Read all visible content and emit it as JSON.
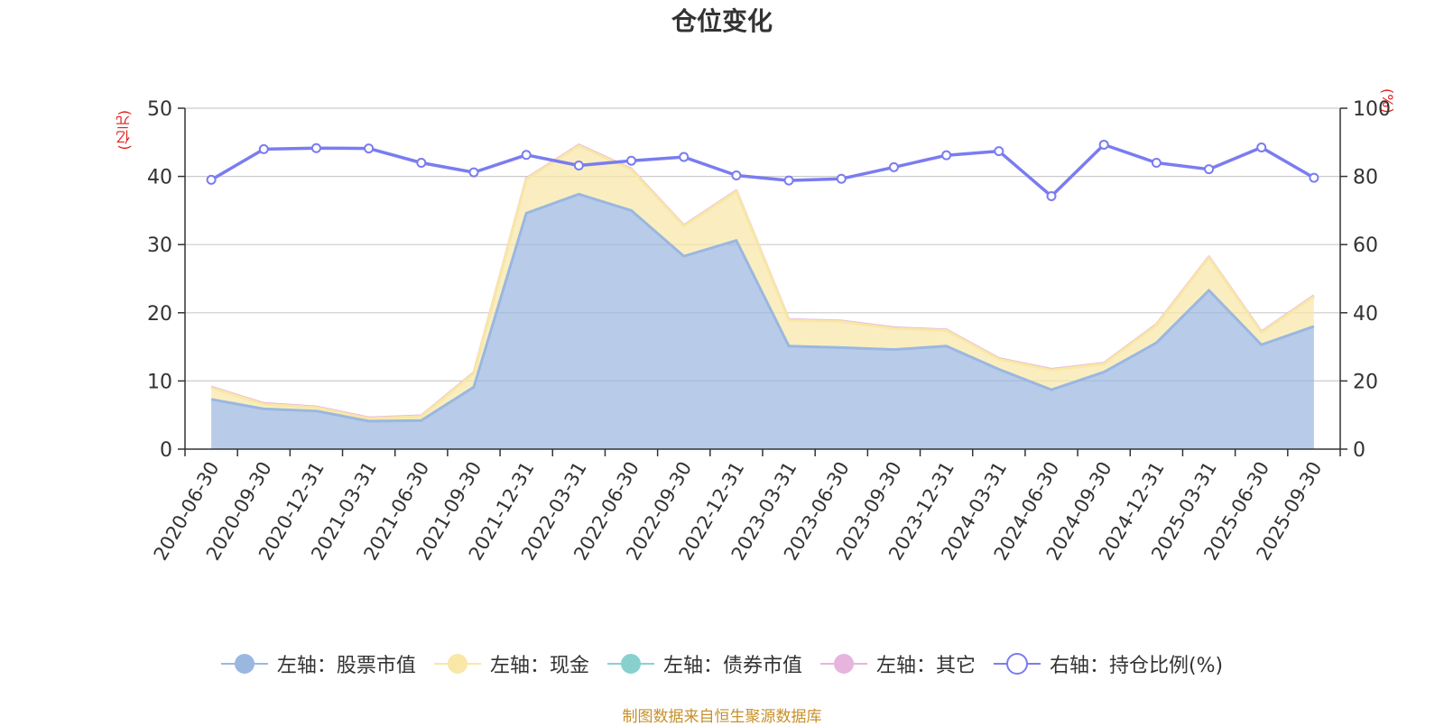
{
  "chart_data": {
    "type": "area",
    "title": "仓位变化",
    "source": "制图数据来自恒生聚源数据库",
    "left_axis": {
      "name": "(亿元)",
      "min": 0,
      "max": 50,
      "ticks": [
        "0",
        "10",
        "20",
        "30",
        "40",
        "50"
      ],
      "ticks_num": [
        0,
        10,
        20,
        30,
        40,
        50
      ]
    },
    "right_axis": {
      "name": "(%)",
      "min": 0,
      "max": 100,
      "ticks": [
        "0",
        "20",
        "40",
        "60",
        "80",
        "100"
      ],
      "ticks_num": [
        0,
        20,
        40,
        60,
        80,
        100
      ]
    },
    "categories": [
      "2020-06-30",
      "2020-09-30",
      "2020-12-31",
      "2021-03-31",
      "2021-06-30",
      "2021-09-30",
      "2021-12-31",
      "2022-03-31",
      "2022-06-30",
      "2022-09-30",
      "2022-12-31",
      "2023-03-31",
      "2023-06-30",
      "2023-09-30",
      "2023-12-31",
      "2024-03-31",
      "2024-06-30",
      "2024-09-30",
      "2024-12-31",
      "2025-03-31",
      "2025-06-30",
      "2025-09-30"
    ],
    "series": [
      {
        "name": "左轴：股票市值",
        "axis": "left",
        "stack": true,
        "color": "#9ab7e0",
        "values": [
          7.3,
          5.9,
          5.6,
          4.1,
          4.2,
          9.1,
          34.6,
          37.4,
          35.0,
          28.3,
          30.6,
          15.1,
          14.9,
          14.6,
          15.1,
          11.7,
          8.7,
          11.3,
          15.6,
          23.3,
          15.3,
          18.0
        ]
      },
      {
        "name": "左轴：现金",
        "axis": "left",
        "stack": true,
        "color": "#f8e7a6",
        "values": [
          1.7,
          0.7,
          0.5,
          0.4,
          0.6,
          2.0,
          5.0,
          7.1,
          6.0,
          4.4,
          7.2,
          3.8,
          3.8,
          3.1,
          2.3,
          1.5,
          2.9,
          1.2,
          2.6,
          4.8,
          1.8,
          4.4
        ]
      },
      {
        "name": "左轴：债券市值",
        "axis": "left",
        "stack": true,
        "color": "#88d0d0",
        "values": [
          0,
          0,
          0,
          0,
          0,
          0,
          0,
          0,
          0,
          0,
          0,
          0,
          0,
          0,
          0,
          0,
          0,
          0,
          0,
          0,
          0,
          0
        ]
      },
      {
        "name": "左轴：其它",
        "axis": "left",
        "stack": true,
        "color": "#e6b4dc",
        "values": [
          0.1,
          0.1,
          0.1,
          0.1,
          0.1,
          0.1,
          0.1,
          0.1,
          0.1,
          0.1,
          0.1,
          0.1,
          0.1,
          0.1,
          0.1,
          0.1,
          0.1,
          0.1,
          0.1,
          0.1,
          0.1,
          0.1
        ]
      },
      {
        "name": "右轴：持仓比例(%)",
        "axis": "right",
        "stack": false,
        "color": "#7a7cf0",
        "values": [
          79.0,
          88.0,
          88.3,
          88.2,
          84.0,
          81.2,
          86.3,
          83.2,
          84.6,
          85.7,
          80.3,
          78.8,
          79.3,
          82.7,
          86.2,
          87.4,
          74.2,
          89.3,
          84.0,
          82.1,
          88.5,
          79.6
        ]
      }
    ]
  }
}
